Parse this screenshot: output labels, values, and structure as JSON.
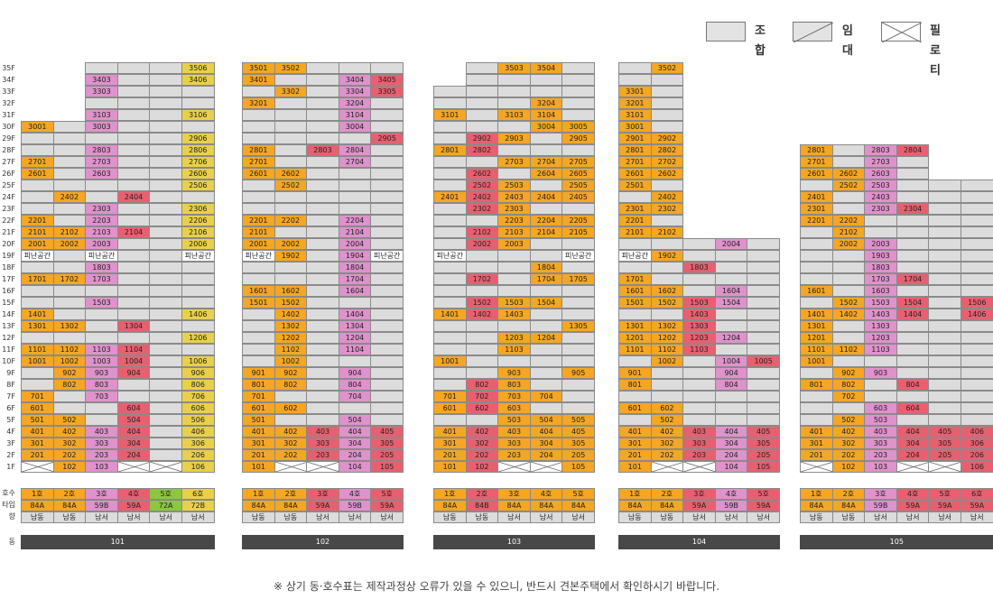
{
  "legend": [
    {
      "label": "조합",
      "type": "gray"
    },
    {
      "label": "임대",
      "type": "rent"
    },
    {
      "label": "필로티",
      "type": "pil"
    }
  ],
  "floors": [
    "35F",
    "34F",
    "33F",
    "32F",
    "31F",
    "30F",
    "29F",
    "28F",
    "27F",
    "26F",
    "25F",
    "24F",
    "23F",
    "22F",
    "21F",
    "20F",
    "19F",
    "18F",
    "17F",
    "16F",
    "15F",
    "14F",
    "13F",
    "12F",
    "11F",
    "10F",
    "9F",
    "8F",
    "7F",
    "6F",
    "5F",
    "4F",
    "3F",
    "2F",
    "1F"
  ],
  "row_labels": {
    "ho": "호수",
    "type": "타입",
    "dir": "향",
    "dong": "동"
  },
  "colors": {
    "gray": "#dcdcdc",
    "orange": "#f5a623",
    "pink": "#df92cb",
    "red": "#e86070",
    "yellow": "#e9d04a",
    "green": "#8dc63f"
  },
  "buildings": [
    {
      "name": "101",
      "ncols": 6,
      "units": [
        {
          "ho": "1호",
          "type": "84A",
          "dir": "남동",
          "color": "orange"
        },
        {
          "ho": "2호",
          "type": "84A",
          "dir": "남동",
          "color": "orange"
        },
        {
          "ho": "3호",
          "type": "59B",
          "dir": "남서",
          "color": "pink"
        },
        {
          "ho": "4호",
          "type": "59A",
          "dir": "남서",
          "color": "red"
        },
        {
          "ho": "5호",
          "type": "72A",
          "dir": "남서",
          "color": "green"
        },
        {
          "ho": "6호",
          "type": "72B",
          "dir": "남서",
          "color": "yellow"
        }
      ],
      "grid": [
        "NNGGGY3506",
        "NNP3403GGY3406",
        "NNP3303GGG",
        "NNGGGG",
        "NNP3103GGY3106",
        "O3001GP3003GGG",
        "GGGGGY2906",
        "GGP2803GGY2806",
        "O2701GP2703GGY2706",
        "O2601GP2603GGY2606",
        "GGGGGY2506",
        "GO2402GR2404GG",
        "GGP2303GGY2306",
        "O2201GP2203GGY2206",
        "O2101O2102P2103R2104GY2106",
        "O2001O2002P2003GGY2006",
        "W피난공간GW피난공간GGW피난공간",
        "GGP1803GGG",
        "O1701O1702P1703GGG",
        "GGGGGG",
        "GGP1503GGG",
        "O1401GGGGY1406",
        "O1301O1302GR1304GG",
        "GGGGGY1206",
        "O1101O1102P1103R1104GG",
        "O1001O1002P1003R1004GY1006",
        "GO902P903R904GY906",
        "GO802P803GGY806",
        "O701GP703GGY706",
        "O601GGR604GY606",
        "O501O502GR504GY506",
        "O401O402P403R404GY406",
        "O301O302P303R304GY306",
        "O201O202P203R204GY206",
        "XO102P103XXY106"
      ]
    },
    {
      "name": "102",
      "ncols": 5,
      "units": [
        {
          "ho": "1호",
          "type": "84A",
          "dir": "남동",
          "color": "orange"
        },
        {
          "ho": "2호",
          "type": "84A",
          "dir": "남동",
          "color": "orange"
        },
        {
          "ho": "3호",
          "type": "59A",
          "dir": "남서",
          "color": "red"
        },
        {
          "ho": "4호",
          "type": "59B",
          "dir": "남서",
          "color": "pink"
        },
        {
          "ho": "5호",
          "type": "59A",
          "dir": "남서",
          "color": "red"
        }
      ],
      "grid": [
        "O3501O3502GGG",
        "O3401GGP3404R3405",
        "GO3302GP3304R3305",
        "O3201GGP3204G",
        "GGGP3104G",
        "GGGP3004G",
        "GGGGR2905",
        "O2801GR2803P2804G",
        "O2701GGP2704G",
        "O2601O2602GGG",
        "GO2502GGG",
        "GGGGG",
        "GGGGG",
        "O2201O2202GP2204G",
        "O2101GGP2104G",
        "O2001O2002GP2004G",
        "W피난공간O1902GP1904W피난공간",
        "GGGP1804G",
        "GGGP1704G",
        "O1601O1602GP1604G",
        "O1501O1502GGG",
        "GO1402GP1404G",
        "GO1302GP1304G",
        "GO1202GP1204G",
        "GO1102GP1104G",
        "GO1002GGG",
        "O901O902GP904G",
        "O801O802GP804G",
        "O701GGP704G",
        "O601O602GGG",
        "O501GGP504G",
        "O401O402R403P404R405",
        "O301O302R303P304R305",
        "O201O202R203P204R205",
        "O101XXP104R105"
      ]
    },
    {
      "name": "103",
      "ncols": 5,
      "units": [
        {
          "ho": "1호",
          "type": "84A",
          "dir": "남동",
          "color": "orange"
        },
        {
          "ho": "2호",
          "type": "84B",
          "dir": "남동",
          "color": "red"
        },
        {
          "ho": "3호",
          "type": "84A",
          "dir": "남서",
          "color": "orange"
        },
        {
          "ho": "4호",
          "type": "84A",
          "dir": "남서",
          "color": "orange"
        },
        {
          "ho": "5호",
          "type": "84A",
          "dir": "남서",
          "color": "orange"
        }
      ],
      "grid": [
        "NGO3503O3504G",
        "NGGGG",
        "GGGGG",
        "GGGO3204G",
        "O3101GO3103O3104G",
        "GGGO3004O3005",
        "GR2902O2903GO2905",
        "O2801R2802GGG",
        "GGO2703O2704O2705",
        "GR2602GO2604O2605",
        "GR2502O2503GO2505",
        "O2401R2402O2403O2404O2405",
        "GR2302O2303GG",
        "GGO2203O2204O2205",
        "GR2102O2103O2104O2105",
        "GR2002O2003GG",
        "W피난공간GGGW피난공간",
        "GGGO1804G",
        "GR1702GO1704O1705",
        "GGGGG",
        "GR1502O1503O1504G",
        "O1401R1402O1403GG",
        "GGGGO1305",
        "GGO1203O1204G",
        "GGO1103GG",
        "O1001GGGG",
        "GGO903GO905",
        "GR802O803GG",
        "O701R702O703O704G",
        "O601R602O603GG",
        "GGO503O504O505",
        "O401R402O403O404O405",
        "O301R302O303O304O305",
        "O201R202O203O204O205",
        "O101R102XXO105"
      ]
    },
    {
      "name": "104",
      "ncols": 5,
      "units": [
        {
          "ho": "1호",
          "type": "84A",
          "dir": "남동",
          "color": "orange"
        },
        {
          "ho": "2호",
          "type": "84A",
          "dir": "남동",
          "color": "orange"
        },
        {
          "ho": "3호",
          "type": "59A",
          "dir": "남서",
          "color": "red"
        },
        {
          "ho": "4호",
          "type": "59B",
          "dir": "남서",
          "color": "pink"
        },
        {
          "ho": "5호",
          "type": "59A",
          "dir": "남서",
          "color": "red"
        }
      ],
      "grid": [
        "GO3502NNN",
        "GGNNN",
        "O3301GNNN",
        "O3201GNNN",
        "O3101GNNN",
        "O3001GNNN",
        "O2901O2902NNN",
        "O2801O2802NNN",
        "O2701O2702NNN",
        "O2601O2602NNN",
        "O2501GNNN",
        "GO2402NNN",
        "O2301O2302NNN",
        "O2201GNNN",
        "O2101O2102NNN",
        "GGGP2004G",
        "W피난공간O1902GGG",
        "GGR1803GG",
        "O1701GGGG",
        "O1601O1602GP1604G",
        "O1501O1502R1503P1504G",
        "GGR1403GG",
        "O1301O1302R1303GG",
        "O1201O1202R1203P1204G",
        "O1101O1102R1103GG",
        "GO1002GP1004R1005",
        "O901GGP904G",
        "O801GGP804G",
        "GGGGG",
        "O601O602GGG",
        "GO502GGG",
        "O401O402R403P404R405",
        "O301O302R303P304R305",
        "O201O202R203P204R205",
        "O101XXP104R105"
      ]
    },
    {
      "name": "105",
      "ncols": 6,
      "units": [
        {
          "ho": "1호",
          "type": "84A",
          "dir": "남동",
          "color": "orange"
        },
        {
          "ho": "2호",
          "type": "84A",
          "dir": "남동",
          "color": "orange"
        },
        {
          "ho": "3호",
          "type": "59B",
          "dir": "남서",
          "color": "pink"
        },
        {
          "ho": "4호",
          "type": "59A",
          "dir": "남서",
          "color": "red"
        },
        {
          "ho": "5호",
          "type": "59A",
          "dir": "남서",
          "color": "red"
        },
        {
          "ho": "6호",
          "type": "59A",
          "dir": "남서",
          "color": "red"
        }
      ],
      "grid": [
        "NNNNNN",
        "NNNNNN",
        "NNNNNN",
        "NNNNNN",
        "NNNNNN",
        "NNNNNN",
        "NNNNNN",
        "O2801GP2803R2804NN",
        "O2701GP2703GNN",
        "O2601O2602P2603GNN",
        "GO2502P2503GGG",
        "O2401GP2403GGG",
        "O2301GP2303R2304GG",
        "O2201O2202GGGG",
        "GO2102GGGG",
        "GO2002P2003GGG",
        "GGP1903GGG",
        "GGP1803GGG",
        "GGP1703R1704GG",
        "O1601GP1603GGG",
        "GO1502P1503R1504GR1506",
        "O1401O1402P1403R1404GR1406",
        "O1301GP1303GGG",
        "O1201GP1203GGG",
        "O1101O1102P1103GGG",
        "O1001GGGGG",
        "GO902P903GGG",
        "O801O802GR804GG",
        "GO702GGGG",
        "GGP603R604GG",
        "GO502P503GGG",
        "O401O402P403R404R405R406",
        "O301O302P303R304R305R306",
        "O201O202P203R204R205R206",
        "XO102P103XXR106"
      ]
    }
  ],
  "note": "※ 상기 동·호수표는 제작과정상 오류가 있을 수 있으니, 반드시 견본주택에서 확인하시기 바랍니다."
}
